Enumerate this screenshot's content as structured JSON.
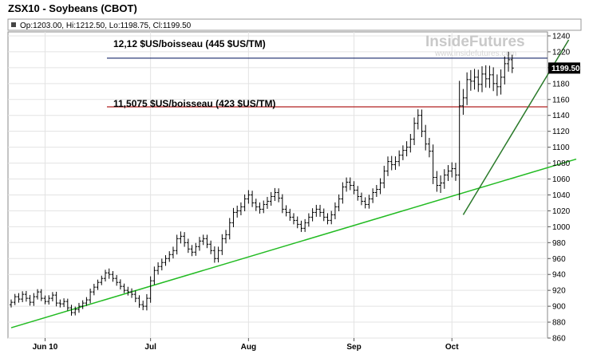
{
  "header": {
    "title": "ZSX10 - Soybeans (CBOT)",
    "ohlc": "Op:1203.00, Hi:1212.50, Lo:1198.75, Cl:1199.50",
    "watermark": "InsideFutures",
    "watermark_url": "www.insidefutures.com"
  },
  "annotations": {
    "upper_label": "12,12 $US/boisseau (445 $US/TM)",
    "lower_label": "11,5075 $US/boisseau (423 $US/TM)"
  },
  "colors": {
    "upper_line": "#1a2a6c",
    "lower_line": "#b22222",
    "trend_green": "#22bb22",
    "trend_dark": "#2a7a2a",
    "bars": "#000000",
    "last_price_box": "#000000"
  },
  "chart_data": {
    "type": "ohlc",
    "symbol": "ZSX10",
    "x_labels": [
      "Jun 10",
      "Jul",
      "Aug",
      "Sep",
      "Oct"
    ],
    "y_ticks": [
      860,
      880,
      900,
      920,
      940,
      960,
      980,
      1000,
      1020,
      1040,
      1060,
      1080,
      1100,
      1120,
      1140,
      1160,
      1180,
      1200,
      1220,
      1240
    ],
    "ylim": [
      860,
      1245
    ],
    "last_price": "1199.50",
    "levels": [
      1212,
      1150.75
    ],
    "closes": [
      905,
      912,
      909,
      915,
      910,
      905,
      912,
      918,
      910,
      906,
      910,
      914,
      904,
      903,
      906,
      898,
      892,
      896,
      900,
      904,
      908,
      918,
      924,
      930,
      935,
      942,
      940,
      935,
      930,
      925,
      920,
      918,
      915,
      910,
      902,
      900,
      910,
      932,
      945,
      950,
      955,
      960,
      965,
      970,
      985,
      988,
      980,
      972,
      968,
      975,
      982,
      985,
      978,
      970,
      960,
      970,
      985,
      990,
      1005,
      1018,
      1020,
      1025,
      1035,
      1040,
      1030,
      1025,
      1022,
      1028,
      1032,
      1038,
      1043,
      1036,
      1022,
      1018,
      1012,
      1008,
      1003,
      998,
      1005,
      1012,
      1018,
      1022,
      1018,
      1012,
      1008,
      1015,
      1025,
      1035,
      1050,
      1056,
      1052,
      1046,
      1038,
      1032,
      1028,
      1035,
      1043,
      1047,
      1055,
      1070,
      1082,
      1078,
      1082,
      1090,
      1096,
      1100,
      1110,
      1130,
      1140,
      1120,
      1104,
      1095,
      1062,
      1052,
      1055,
      1065,
      1070,
      1073,
      1065,
      1152,
      1162,
      1185,
      1183,
      1188,
      1179,
      1192,
      1186,
      1191,
      1180,
      1176,
      1188,
      1205,
      1210,
      1199.5
    ],
    "bar_ranges": [
      10,
      10,
      12,
      11,
      12,
      12,
      13,
      10,
      10,
      10,
      11,
      11,
      12,
      10,
      11,
      10,
      11,
      10,
      12,
      10,
      10,
      12,
      12,
      10,
      10,
      11,
      13,
      12,
      12,
      11,
      10,
      11,
      12,
      14,
      11,
      12,
      15,
      16,
      14,
      15,
      14,
      12,
      12,
      14,
      14,
      15,
      15,
      14,
      14,
      13,
      15,
      13,
      14,
      13,
      15,
      14,
      16,
      17,
      17,
      16,
      15,
      16,
      16,
      17,
      15,
      15,
      14,
      14,
      15,
      16,
      16,
      15,
      14,
      14,
      13,
      14,
      14,
      13,
      13,
      14,
      15,
      15,
      15,
      14,
      14,
      14,
      16,
      16,
      17,
      17,
      16,
      15,
      15,
      14,
      14,
      15,
      15,
      15,
      17,
      19,
      18,
      18,
      17,
      17,
      18,
      19,
      19,
      21,
      22,
      21,
      23,
      22,
      24,
      23,
      22,
      21,
      20,
      19,
      21,
      90,
      32,
      26,
      26,
      26,
      27,
      28,
      28,
      28,
      27,
      27,
      28,
      26,
      25,
      18
    ],
    "trendlines": [
      {
        "name": "support",
        "from": [
          0,
          873
        ],
        "to": [
          150,
          1085
        ]
      },
      {
        "name": "steep",
        "from": [
          120,
          1015
        ],
        "to": [
          148,
          1235
        ]
      }
    ]
  }
}
